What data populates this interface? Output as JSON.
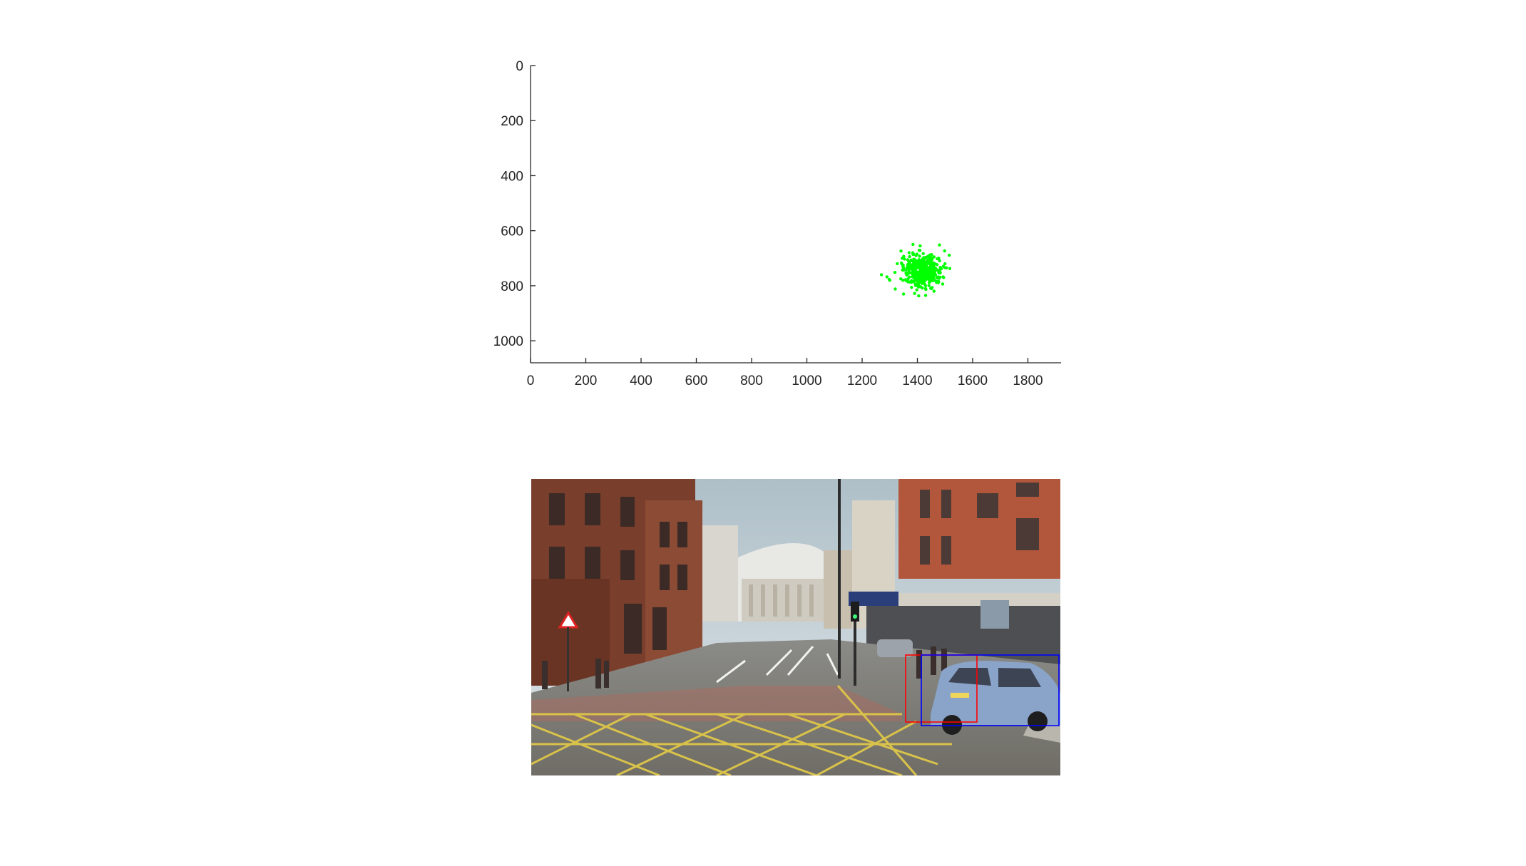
{
  "chart_data": {
    "type": "scatter",
    "title": "",
    "xlabel": "",
    "ylabel": "",
    "xlim": [
      0,
      1920
    ],
    "ylim": [
      0,
      1080
    ],
    "y_axis_reversed": true,
    "grid": false,
    "x_ticks": [
      "0",
      "200",
      "400",
      "600",
      "800",
      "1000",
      "1200",
      "1400",
      "1600",
      "1800"
    ],
    "y_ticks": [
      "0",
      "200",
      "400",
      "600",
      "800",
      "1000"
    ],
    "series": [
      {
        "color": "#00ff00",
        "cluster_center": [
          1420,
          745
        ],
        "cluster_spread": [
          35,
          28
        ],
        "point_count": 450,
        "points": [
          [
            1290,
            768
          ],
          [
            1270,
            760
          ],
          [
            1300,
            780
          ],
          [
            1320,
            812
          ],
          [
            1350,
            830
          ],
          [
            1390,
            828
          ],
          [
            1410,
            655
          ],
          [
            1480,
            652
          ],
          [
            1395,
            690
          ],
          [
            1500,
            720
          ],
          [
            1505,
            735
          ],
          [
            1460,
            820
          ],
          [
            1430,
            835
          ],
          [
            1495,
            770
          ],
          [
            1345,
            700
          ],
          [
            1370,
            680
          ]
        ]
      }
    ]
  },
  "photo": {
    "bboxes": [
      {
        "color": "#ff0000"
      },
      {
        "color": "#0000ff"
      }
    ]
  }
}
